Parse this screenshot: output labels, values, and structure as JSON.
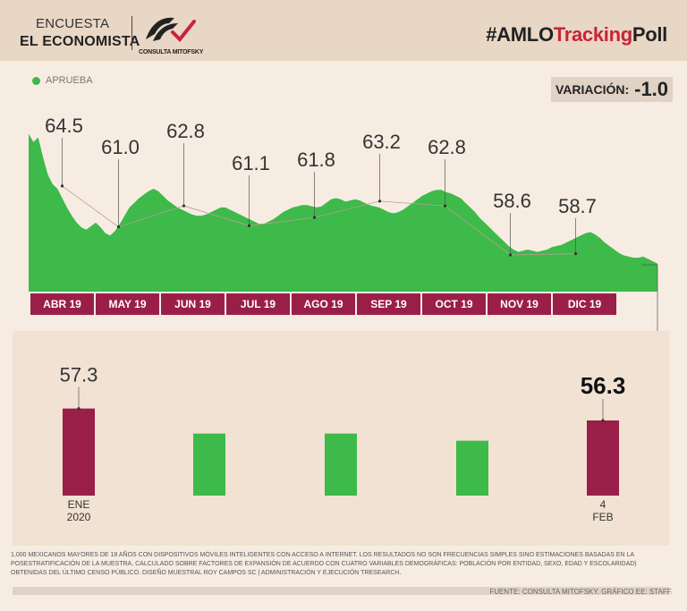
{
  "header": {
    "brand_line1": "ENCUESTA",
    "brand_line2": "EL ECONOMISTA",
    "logo_text": "CONSULTA MITOFSKY",
    "hashtag_prefix": "#AMLO",
    "hashtag_accent": "Tracking",
    "hashtag_suffix": "Poll"
  },
  "legend": {
    "label": "APRUEBA"
  },
  "variation": {
    "label": "VARIACIÓN:",
    "value": "-1.0"
  },
  "colors": {
    "green": "#3dba4a",
    "maroon": "#9a1f48",
    "accent_red": "#c8233a",
    "background": "#f7ece2"
  },
  "chart_data": [
    {
      "type": "area",
      "title": "",
      "series_name": "APRUEBA",
      "months": [
        "ABR 19",
        "MAY 19",
        "JUN 19",
        "JUL 19",
        "AGO 19",
        "SEP 19",
        "OCT 19",
        "NOV 19",
        "DIC 19"
      ],
      "monthly_labels": [
        {
          "month": "ABR 19",
          "label": "64.5",
          "value": 64.5
        },
        {
          "month": "MAY 19",
          "label": "61.0",
          "value": 61.0
        },
        {
          "month": "JUN 19",
          "label": "62.8",
          "value": 62.8
        },
        {
          "month": "JUL 19",
          "label": "61.1",
          "value": 61.1
        },
        {
          "month": "AGO 19",
          "label": "61.8",
          "value": 61.8
        },
        {
          "month": "SEP 19",
          "label": "63.2",
          "value": 63.2
        },
        {
          "month": "OCT 19",
          "label": "62.8",
          "value": 62.8
        },
        {
          "month": "NOV 19",
          "label": "58.6",
          "value": 58.6
        },
        {
          "month": "DIC 19",
          "label": "58.7",
          "value": 58.7
        }
      ],
      "daily_values": [
        68.5,
        67.8,
        68.2,
        66.5,
        65.0,
        64.2,
        63.8,
        63.0,
        62.2,
        61.5,
        60.9,
        60.5,
        60.3,
        60.6,
        60.9,
        60.5,
        60.0,
        59.8,
        60.2,
        60.8,
        61.5,
        62.2,
        62.6,
        63.0,
        63.3,
        63.6,
        63.8,
        63.6,
        63.2,
        62.8,
        62.5,
        62.2,
        62.0,
        61.8,
        61.6,
        61.5,
        61.5,
        61.6,
        61.8,
        62.0,
        62.2,
        62.2,
        62.0,
        61.8,
        61.6,
        61.4,
        61.2,
        61.0,
        60.8,
        60.8,
        61.0,
        61.2,
        61.5,
        61.8,
        62.0,
        62.2,
        62.3,
        62.4,
        62.4,
        62.3,
        62.2,
        62.3,
        62.6,
        62.9,
        63.0,
        62.9,
        62.7,
        62.8,
        62.9,
        62.8,
        62.6,
        62.4,
        62.3,
        62.2,
        62.0,
        61.8,
        61.7,
        61.8,
        62.0,
        62.3,
        62.6,
        62.9,
        63.2,
        63.4,
        63.6,
        63.7,
        63.7,
        63.5,
        63.4,
        63.2,
        63.0,
        62.6,
        62.2,
        61.8,
        61.3,
        60.9,
        60.5,
        60.1,
        59.7,
        59.3,
        58.9,
        58.6,
        58.4,
        58.5,
        58.6,
        58.5,
        58.4,
        58.5,
        58.6,
        58.8,
        58.9,
        59.0,
        59.2,
        59.4,
        59.6,
        59.8,
        60.0,
        60.1,
        59.9,
        59.6,
        59.2,
        58.9,
        58.6,
        58.3,
        58.1,
        58.0,
        57.9,
        57.9,
        58.0,
        57.8,
        57.6,
        57.4
      ],
      "ylim": [
        55.0,
        70.0
      ]
    },
    {
      "type": "bar",
      "title": "",
      "categories": [
        "ENE\n2020",
        "",
        "",
        "",
        "4\nFEB"
      ],
      "x_labels": [
        [
          "ENE",
          "2020"
        ],
        [],
        [],
        [],
        [
          "4",
          "FEB"
        ]
      ],
      "values": [
        57.3,
        55.2,
        55.2,
        54.6,
        56.3
      ],
      "value_labels": [
        "57.3",
        "",
        "",
        "",
        "56.3"
      ],
      "highlight_colors": [
        "#9a1f48",
        "#3dba4a",
        "#3dba4a",
        "#3dba4a",
        "#9a1f48"
      ],
      "ylim": [
        50.0,
        59.0
      ]
    }
  ],
  "footnote": "1,000 MEXICANOS MAYORES DE 18 AÑOS CON DISPOSITIVOS MÓVILES INTELIGENTES CON ACCESO A INTERNET. LOS RESULTADOS NO SON FRECUENCIAS SIMPLES SINO ESTIMACIONES BASADAS EN LA POSESTRATIFICACIÓN DE LA MUESTRA, CALCULADO SOBRE FACTORES DE EXPANSIÓN DE ACUERDO CON CUATRO VARIABLES DEMOGRÁFICAS: POBLACIÓN POR ENTIDAD, SEXO, EDAD Y ESCOLARIDAD) OBTENIDAS DEL ÚLTIMO CENSO PÚBLICO. DISEÑO MUESTRAL ROY CAMPOS SC | ADMINISTRACIÓN Y EJECUCIÓN TRESEARCH.",
  "source": "FUENTE: CONSULTA MITOFSKY. GRÁFICO EE: STAFF."
}
